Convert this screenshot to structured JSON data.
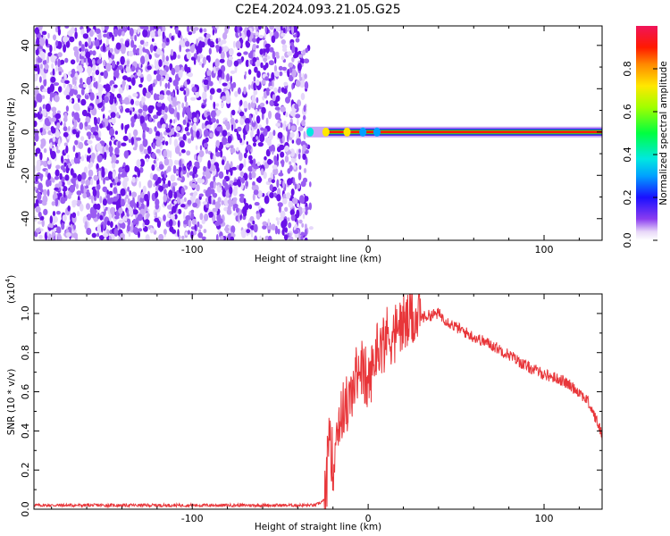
{
  "title": "C2E4.2024.093.21.05.G25",
  "colors": {
    "noise": "#7a1fe8",
    "signal_line": "#e8363a",
    "axis": "#000000"
  },
  "chart_data": [
    {
      "type": "heatmap",
      "xlabel": "Height of straight line (km)",
      "ylabel": "Frequency (Hz)",
      "xlim": [
        -190,
        133
      ],
      "ylim": [
        -50,
        49
      ],
      "xticks": [
        -100,
        0,
        100
      ],
      "xtick_labels": [
        "-100",
        "0",
        "100"
      ],
      "yticks": [
        -40,
        -20,
        0,
        20,
        40
      ],
      "ytick_labels": [
        "-40",
        "-20",
        "0",
        "20",
        "40"
      ],
      "noise_region_x": [
        -190,
        -35
      ],
      "signal_track": {
        "frequency_hz": 0,
        "x_start": -35,
        "x_end": 133,
        "peak_normalized_amplitude": 1.0
      },
      "colorbar": {
        "label": "Normalized spectral amplitude",
        "range": [
          0,
          1
        ],
        "ticks": [
          0.0,
          0.2,
          0.4,
          0.6,
          0.8
        ],
        "tick_labels": [
          "0.0",
          "0.2",
          "0.4",
          "0.6",
          "0.8"
        ],
        "colormap": "rainbow"
      }
    },
    {
      "type": "line",
      "xlabel": "Height of straight line (km)",
      "ylabel": "SNR (10 * v/v)",
      "scale_label": "(x10",
      "scale_exponent": "4",
      "xlim": [
        -190,
        133
      ],
      "ylim": [
        0,
        1.1
      ],
      "xticks": [
        -100,
        0,
        100
      ],
      "xtick_labels": [
        "-100",
        "0",
        "100"
      ],
      "yticks": [
        0.0,
        0.2,
        0.4,
        0.6,
        0.8,
        1.0
      ],
      "ytick_labels": [
        "0.0",
        "0.2",
        "0.4",
        "0.6",
        "0.8",
        "1.0"
      ],
      "series": [
        {
          "x": [
            -190,
            -150,
            -100,
            -60,
            -30,
            -24,
            -22,
            -20,
            -18,
            -15,
            -10,
            -5,
            0,
            5,
            10,
            15,
            20,
            30,
            40,
            45,
            50,
            60,
            70,
            80,
            90,
            100,
            110,
            120,
            125,
            130,
            133
          ],
          "y": [
            0.02,
            0.02,
            0.02,
            0.02,
            0.02,
            0.05,
            0.45,
            0.2,
            0.4,
            0.5,
            0.55,
            0.75,
            0.62,
            0.82,
            0.88,
            0.9,
            0.95,
            0.98,
            1.0,
            0.96,
            0.93,
            0.88,
            0.84,
            0.79,
            0.73,
            0.69,
            0.66,
            0.6,
            0.55,
            0.45,
            0.38
          ]
        }
      ]
    }
  ]
}
